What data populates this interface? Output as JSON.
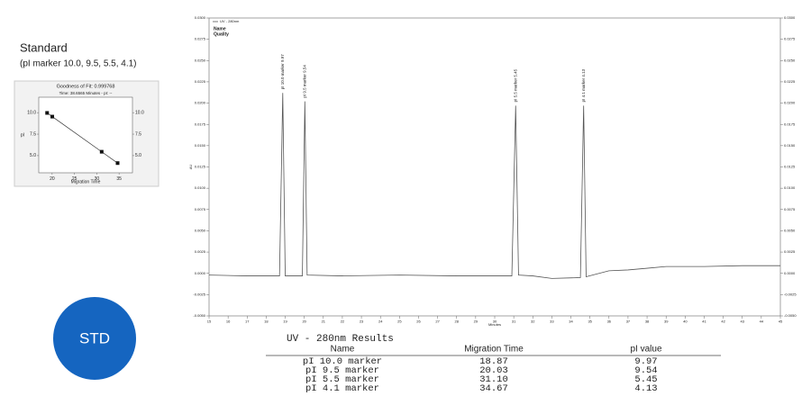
{
  "header": {
    "title": "Standard",
    "subtitle": "(pI marker 10.0, 9.5, 5.5, 4.1)"
  },
  "badge": "STD",
  "chart_data": [
    {
      "type": "line",
      "x_label": "Minutes",
      "y_label": "AU",
      "notes": [
        "Name",
        "Quality"
      ],
      "x": [
        15,
        17,
        18.7,
        18.87,
        19.0,
        19.9,
        20.03,
        20.15,
        22,
        25,
        28,
        30.9,
        31.1,
        31.25,
        32,
        33,
        34.5,
        34.67,
        34.8,
        36,
        37,
        38,
        39,
        41,
        43,
        45
      ],
      "series": [
        {
          "name": "UV - 280nm",
          "color": "#555555",
          "values": [
            -0.0002,
            -0.0003,
            -0.0003,
            0.0212,
            -0.0003,
            -0.0003,
            0.0202,
            -0.0002,
            -0.0003,
            -0.0002,
            -0.0003,
            -0.0003,
            0.0197,
            -0.0002,
            -0.0003,
            -0.0006,
            -0.0005,
            0.0197,
            -0.0004,
            0.0003,
            0.0004,
            0.0006,
            0.0008,
            0.0008,
            0.0009,
            0.0009
          ]
        }
      ],
      "annotations": [
        {
          "text": "pI 10.0 marker 9.97",
          "x": 18.87
        },
        {
          "text": "pI 9.5 marker 9.54",
          "x": 20.03
        },
        {
          "text": "pI 5.5 marker 5.45",
          "x": 31.1
        },
        {
          "text": "pI 4.1 marker 4.13",
          "x": 34.67
        }
      ],
      "xlim": [
        15,
        45
      ],
      "xticks": [
        15,
        16,
        17,
        18,
        19,
        20,
        21,
        22,
        23,
        24,
        25,
        26,
        27,
        28,
        29,
        30,
        31,
        32,
        33,
        34,
        35,
        36,
        37,
        38,
        39,
        40,
        41,
        42,
        43,
        44,
        45
      ],
      "ylim": [
        -0.005,
        0.03
      ],
      "yticks": [
        {
          "value": -0.005,
          "label": "-0.0050"
        },
        {
          "value": -0.0025,
          "label": "-0.0025"
        },
        {
          "value": 0,
          "label": "0.0000"
        },
        {
          "value": 0.0025,
          "label": "0.0025"
        },
        {
          "value": 0.005,
          "label": "0.0050"
        },
        {
          "value": 0.0075,
          "label": "0.0075"
        },
        {
          "value": 0.01,
          "label": "0.0100"
        },
        {
          "value": 0.0125,
          "label": "0.0125"
        },
        {
          "value": 0.015,
          "label": "0.0150"
        },
        {
          "value": 0.0175,
          "label": "0.0175"
        },
        {
          "value": 0.02,
          "label": "0.0200"
        },
        {
          "value": 0.0225,
          "label": "0.0225"
        },
        {
          "value": 0.025,
          "label": "0.0250"
        },
        {
          "value": 0.0275,
          "label": "0.0275"
        },
        {
          "value": 0.03,
          "label": "0.0300"
        }
      ]
    },
    {
      "type": "scatter",
      "title": "Goodness of Fit: 0.999768",
      "subtitle": "Time: 38.6565 Minutes - pI: --",
      "x_label": "Migration Time",
      "y_label": "pI",
      "color": "#111111",
      "x": [
        18.87,
        20.03,
        31.1,
        34.67
      ],
      "values": [
        9.97,
        9.54,
        5.45,
        4.13
      ],
      "xlim": [
        17,
        38
      ],
      "xticks": [
        20,
        25,
        30,
        35
      ],
      "ylim": [
        3,
        11.8
      ],
      "yticks": [
        {
          "value": 5,
          "label": "5.0"
        },
        7.5,
        {
          "value": 10,
          "label": "10.0"
        }
      ]
    }
  ],
  "table": {
    "title": "UV - 280nm Results",
    "columns": [
      "Name",
      "Migration Time",
      "pI value"
    ],
    "rows": [
      [
        "pI 10.0 marker",
        "18.87",
        "9.97"
      ],
      [
        "pI 9.5 marker",
        "20.03",
        "9.54"
      ],
      [
        "pI 5.5 marker",
        "31.10",
        "5.45"
      ],
      [
        "pI 4.1 marker",
        "34.67",
        "4.13"
      ]
    ]
  }
}
